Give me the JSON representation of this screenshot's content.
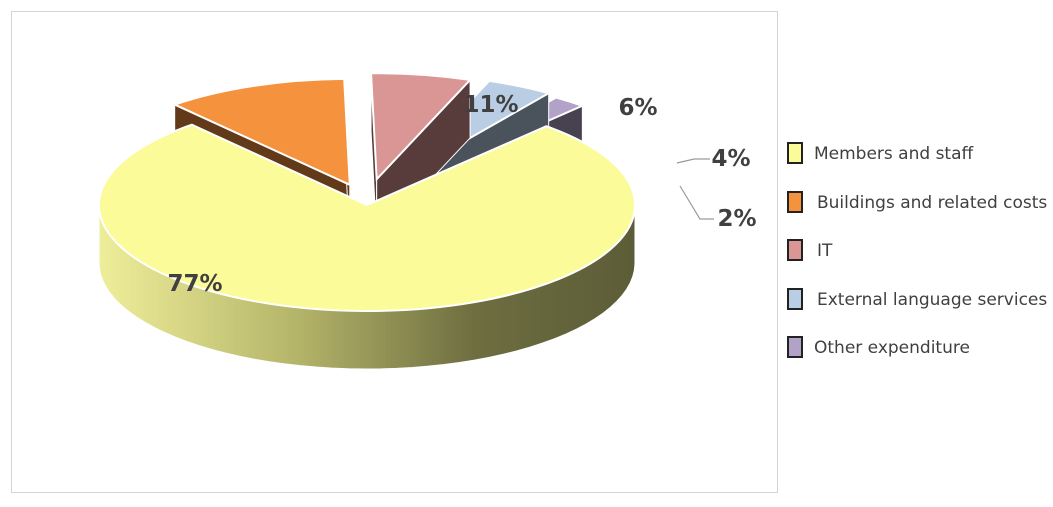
{
  "chart_data": {
    "type": "pie",
    "categories": [
      "Members and staff",
      "Buildings and related costs",
      "IT",
      "External language services",
      "Other expenditure"
    ],
    "values": [
      77,
      11,
      6,
      4,
      2
    ],
    "data_labels": [
      "77%",
      "11%",
      "6%",
      "4%",
      "2%"
    ],
    "colors": [
      "#fbfb9a",
      "#f4923e",
      "#d99694",
      "#b9cde4",
      "#b3a2c7"
    ],
    "title": "",
    "legend_position": "right",
    "style": "3d-exploded"
  },
  "legend": [
    {
      "label": "Members and staff",
      "color": "#fbfb9a"
    },
    {
      "label": "Buildings and related costs",
      "color": "#f4923e"
    },
    {
      "label": "IT",
      "color": "#d99694"
    },
    {
      "label": "External language services",
      "color": "#b9cde4"
    },
    {
      "label": "Other expenditure",
      "color": "#b3a2c7"
    }
  ]
}
